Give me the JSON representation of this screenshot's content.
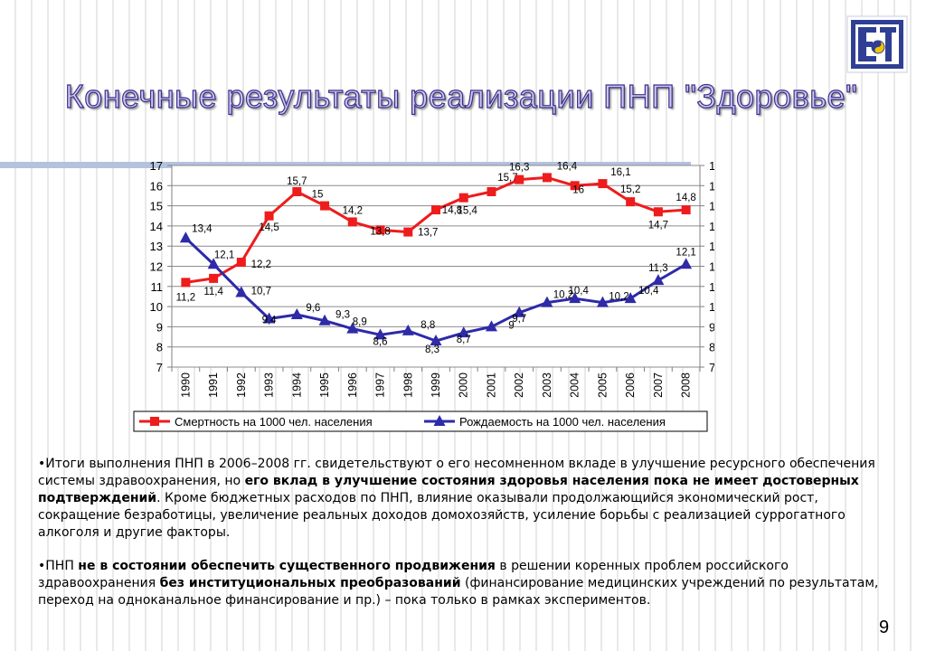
{
  "slide": {
    "title": "Конечные результаты реализации ПНП \"Здоровье\"",
    "page_number": "9"
  },
  "chart_data": {
    "type": "line",
    "categories": [
      "1990",
      "1991",
      "1992",
      "1993",
      "1994",
      "1995",
      "1996",
      "1997",
      "1998",
      "1999",
      "2000",
      "2001",
      "2002",
      "2003",
      "2004",
      "2005",
      "2006",
      "2007",
      "2008"
    ],
    "series": [
      {
        "name": "Смертность на 1000 чел. населения",
        "color": "#ee1c1c",
        "marker": "square",
        "values": [
          11.2,
          11.4,
          12.2,
          14.5,
          15.7,
          15.0,
          14.2,
          13.8,
          13.7,
          14.8,
          15.4,
          15.7,
          16.3,
          16.4,
          16.0,
          16.1,
          15.2,
          14.7,
          14.8
        ],
        "labels": [
          "11,2",
          "11,4",
          "12,2",
          "14,5",
          "15,7",
          "15",
          "14,2",
          "13,8",
          "13,7",
          "14,8",
          "15,4",
          "15,7",
          "16,3",
          "16,4",
          "16",
          "16,1",
          "15,2",
          "14,7",
          "14,8"
        ]
      },
      {
        "name": "Рождаемость на 1000 чел. населения",
        "color": "#2e2aa8",
        "marker": "triangle",
        "values": [
          13.4,
          12.1,
          10.7,
          9.4,
          9.6,
          9.3,
          8.9,
          8.6,
          8.8,
          8.3,
          8.7,
          9.0,
          9.7,
          10.2,
          10.4,
          10.2,
          10.4,
          11.3,
          12.1
        ],
        "labels": [
          "13,4",
          "12,1",
          "10,7",
          "9,4",
          "9,6",
          "9,3",
          "8,9",
          "8,6",
          "8,8",
          "8,3",
          "8,7",
          "9",
          "9,7",
          "10,2",
          "10,4",
          "10,2",
          "10,4",
          "11,3",
          "12,1"
        ]
      }
    ],
    "yticks": [
      "7",
      "8",
      "9",
      "10",
      "11",
      "12",
      "13",
      "14",
      "15",
      "16",
      "17"
    ],
    "ylim": [
      7,
      17
    ],
    "grid": true,
    "legend_position": "bottom"
  },
  "text": {
    "p1_a": "•Итоги выполнения ПНП в 2006–2008 гг. свидетельствуют о его несомненном вкладе в улучшение ресурсного обеспечения системы здравоохранения, но ",
    "p1_b": "его вклад в улучшение состояния  здоровья населения пока не имеет достоверных подтверждений",
    "p1_c": ". Кроме бюджетных расходов по ПНП, влияние оказывали продолжающийся экономический рост, сокращение безработицы, увеличение реальных доходов домохозяйств, усиление борьбы с реализацией суррогатного алкоголя и другие факторы.",
    "p2_a": "•ПНП ",
    "p2_b": "не в состоянии обеспечить существенного продвижения",
    "p2_c": " в решении коренных проблем российского здравоохранения ",
    "p2_d": "без институциональных преобразований",
    "p2_e": " (финансирование медицинских учреждений по результатам, переход на одноканальное финансирование и пр.) – пока только в рамках экспериментов."
  }
}
